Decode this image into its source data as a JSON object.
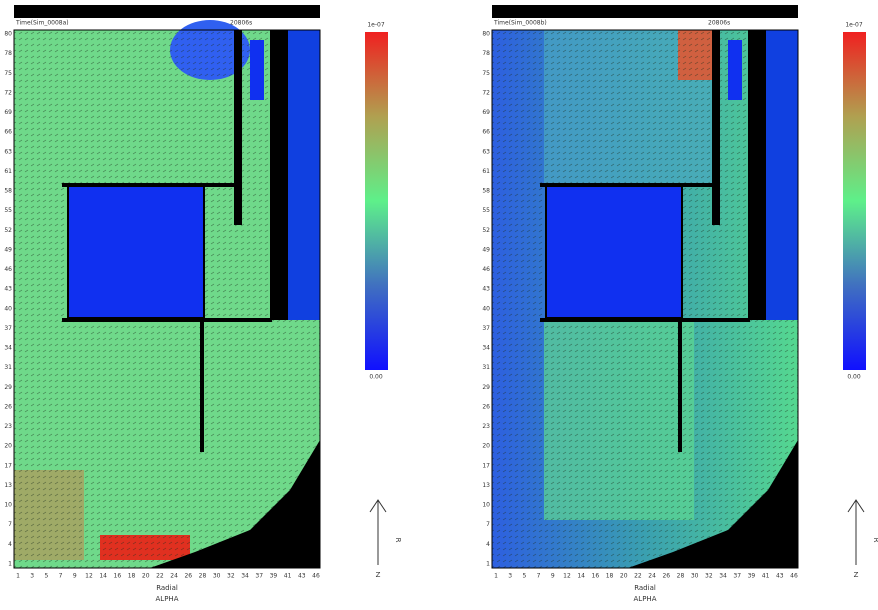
{
  "panels": [
    {
      "header_left": "Time(Sim_0008a)",
      "header_right": "20806s",
      "colorbar_max": "1e-07",
      "colorbar_min": "0.00",
      "yticks": [
        "80",
        "78",
        "75",
        "72",
        "69",
        "66",
        "63",
        "61",
        "58",
        "55",
        "52",
        "49",
        "46",
        "43",
        "40",
        "37",
        "34",
        "31",
        "29",
        "26",
        "23",
        "20",
        "17",
        "13",
        "10",
        "7",
        "4",
        "1"
      ],
      "xticks": [
        "1",
        "3",
        "5",
        "7",
        "9",
        "12",
        "14",
        "16",
        "18",
        "20",
        "22",
        "24",
        "26",
        "28",
        "30",
        "32",
        "34",
        "37",
        "39",
        "41",
        "43",
        "46"
      ],
      "xlabel": "Radial",
      "xsublabel": "ALPHA",
      "arrow_label": "Z",
      "arrow_side_label": "R"
    },
    {
      "header_left": "Time(Sim_0008b)",
      "header_right": "20806s",
      "colorbar_max": "1e-07",
      "colorbar_min": "0.00",
      "yticks": [
        "80",
        "78",
        "75",
        "72",
        "69",
        "66",
        "63",
        "61",
        "58",
        "55",
        "52",
        "49",
        "46",
        "43",
        "40",
        "37",
        "34",
        "31",
        "29",
        "26",
        "23",
        "20",
        "17",
        "13",
        "10",
        "7",
        "4",
        "1"
      ],
      "xticks": [
        "1",
        "3",
        "5",
        "7",
        "9",
        "12",
        "14",
        "16",
        "18",
        "20",
        "22",
        "24",
        "26",
        "28",
        "30",
        "32",
        "34",
        "37",
        "39",
        "41",
        "43",
        "46"
      ],
      "xlabel": "Radial",
      "xsublabel": "ALPHA",
      "arrow_label": "Z",
      "arrow_side_label": "R"
    }
  ]
}
